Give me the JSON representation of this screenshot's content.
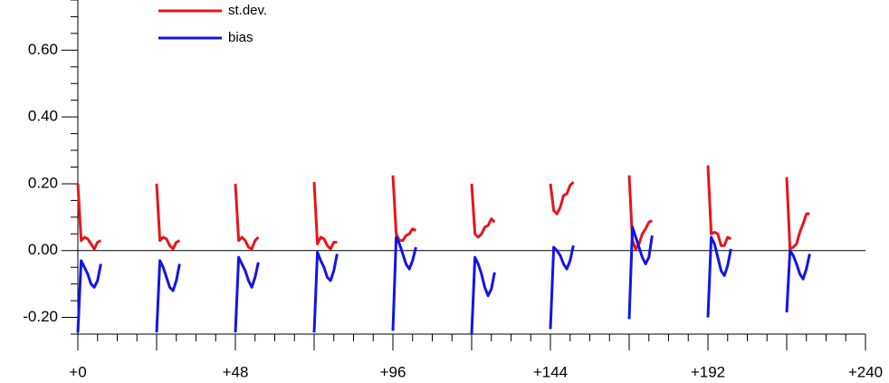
{
  "chart_data": {
    "type": "line",
    "x": [
      0,
      1,
      2,
      3,
      4,
      5,
      6,
      7,
      12,
      24,
      25,
      26,
      27,
      28,
      29,
      30,
      31,
      36,
      48,
      49,
      50,
      51,
      52,
      53,
      54,
      55,
      60,
      72,
      73,
      74,
      75,
      76,
      77,
      78,
      79,
      84,
      96,
      97,
      98,
      99,
      100,
      101,
      102,
      103,
      108,
      120,
      121,
      122,
      123,
      124,
      125,
      126,
      127,
      132,
      144,
      145,
      146,
      147,
      148,
      149,
      150,
      151,
      156,
      168,
      169,
      170,
      171,
      172,
      173,
      174,
      175,
      180,
      192,
      193,
      194,
      195,
      196,
      197,
      198,
      199,
      204,
      216,
      217,
      218,
      219,
      220,
      221,
      222,
      223
    ],
    "series": [
      {
        "name": "st.dev.",
        "color": "#e8141c",
        "values": [
          0.2,
          0.03,
          0.04,
          0.035,
          0.02,
          0.005,
          0.025,
          0.03,
          null,
          0.2,
          0.03,
          0.04,
          0.035,
          0.015,
          0.005,
          0.025,
          0.03,
          null,
          0.2,
          0.03,
          0.04,
          0.03,
          0.01,
          0.005,
          0.03,
          0.04,
          null,
          0.205,
          0.02,
          0.04,
          0.035,
          0.015,
          0.005,
          0.025,
          0.025,
          null,
          0.225,
          0.05,
          0.03,
          0.03,
          0.045,
          0.05,
          0.065,
          0.06,
          null,
          0.2,
          0.05,
          0.04,
          0.05,
          0.07,
          0.075,
          0.095,
          0.085,
          null,
          0.2,
          0.12,
          0.11,
          0.13,
          0.165,
          0.17,
          0.195,
          0.205,
          null,
          0.225,
          0.03,
          0.005,
          0.02,
          0.05,
          0.065,
          0.085,
          0.09,
          null,
          0.255,
          0.05,
          0.055,
          0.05,
          0.015,
          0.015,
          0.04,
          0.035,
          null,
          0.22,
          0.005,
          0.01,
          0.02,
          0.055,
          0.08,
          0.11,
          0.11
        ]
      },
      {
        "name": "bias",
        "color": "#1414e6",
        "values": [
          -0.245,
          -0.03,
          -0.05,
          -0.07,
          -0.1,
          -0.11,
          -0.09,
          -0.04,
          null,
          -0.245,
          -0.03,
          -0.05,
          -0.08,
          -0.11,
          -0.12,
          -0.09,
          -0.04,
          null,
          -0.245,
          -0.02,
          -0.04,
          -0.06,
          -0.09,
          -0.11,
          -0.08,
          -0.035,
          null,
          -0.245,
          -0.005,
          -0.03,
          -0.05,
          -0.08,
          -0.09,
          -0.06,
          -0.01,
          null,
          -0.24,
          0.04,
          0.02,
          -0.01,
          -0.04,
          -0.055,
          -0.03,
          0.01,
          null,
          -0.25,
          -0.02,
          -0.04,
          -0.07,
          -0.11,
          -0.135,
          -0.115,
          -0.065,
          null,
          -0.235,
          0.01,
          0.0,
          -0.015,
          -0.04,
          -0.055,
          -0.03,
          0.015,
          null,
          -0.205,
          0.07,
          0.04,
          0.01,
          -0.02,
          -0.04,
          -0.02,
          0.045,
          null,
          -0.2,
          0.04,
          0.02,
          -0.02,
          -0.06,
          -0.075,
          -0.045,
          0.005,
          null,
          -0.185,
          0.0,
          -0.015,
          -0.04,
          -0.07,
          -0.085,
          -0.055,
          -0.01
        ]
      }
    ],
    "xlim": [
      0,
      240
    ],
    "xticks": [
      {
        "value": 0,
        "label": "+0"
      },
      {
        "value": 48,
        "label": "+48"
      },
      {
        "value": 96,
        "label": "+96"
      },
      {
        "value": 144,
        "label": "+144"
      },
      {
        "value": 192,
        "label": "+192"
      },
      {
        "value": 240,
        "label": "+240"
      }
    ],
    "xticks_unlabeled": [
      24,
      72,
      120,
      168,
      216
    ],
    "xticks_minor": [
      6,
      12,
      18,
      30,
      36,
      42,
      54,
      60,
      66,
      78,
      84,
      90,
      102,
      108,
      114,
      126,
      132,
      138,
      150,
      156,
      162,
      174,
      180,
      186,
      198,
      204,
      210,
      222,
      228,
      234
    ],
    "ylim": [
      -0.25,
      0.75
    ],
    "yticks": [
      {
        "value": -0.2,
        "label": "-0.20"
      },
      {
        "value": 0,
        "label": "0.00"
      },
      {
        "value": 0.2,
        "label": "0.20"
      },
      {
        "value": 0.4,
        "label": "0.40"
      },
      {
        "value": 0.6,
        "label": "0.60"
      }
    ],
    "yticks_minor": [
      -0.25,
      -0.15,
      -0.1,
      -0.05,
      0.05,
      0.1,
      0.15,
      0.25,
      0.3,
      0.35,
      0.45,
      0.5,
      0.55,
      0.65,
      0.7,
      0.75
    ],
    "hline": 0,
    "legend": "top-left"
  }
}
